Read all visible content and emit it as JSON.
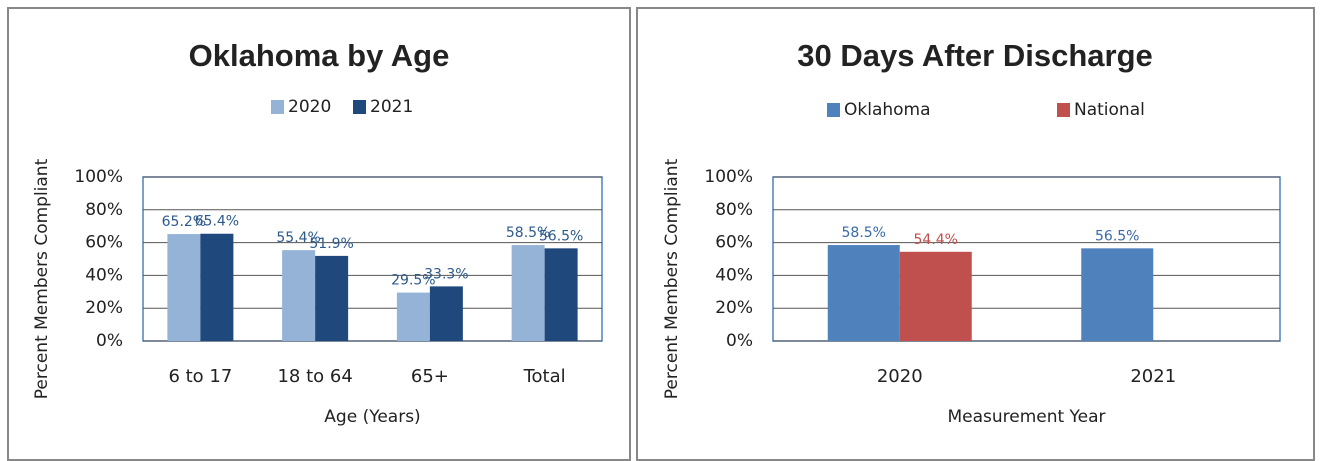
{
  "chart_data": [
    {
      "type": "bar",
      "title": "Oklahoma by Age",
      "x_label": "Age (Years)",
      "y_label": "Percent Members Compliant",
      "categories": [
        "6 to 17",
        "18 to 64",
        "65+",
        "Total"
      ],
      "series": [
        {
          "name": "2020",
          "color": "#95b3d7",
          "label_color": "#2e5a8c",
          "values": [
            65.2,
            55.4,
            29.5,
            58.5
          ],
          "value_labels": [
            "65.2%",
            "55.4%",
            "29.5%",
            "58.5%"
          ]
        },
        {
          "name": "2021",
          "color": "#1f497d",
          "label_color": "#2e5a8c",
          "values": [
            65.4,
            51.9,
            33.3,
            56.5
          ],
          "value_labels": [
            "65.4%",
            "51.9%",
            "33.3%",
            "56.5%"
          ]
        }
      ],
      "ylim": [
        0,
        100
      ],
      "yticks": [
        {
          "value": 0,
          "label": "0%"
        },
        {
          "value": 20,
          "label": "20%"
        },
        {
          "value": 40,
          "label": "40%"
        },
        {
          "value": 60,
          "label": "60%"
        },
        {
          "value": 80,
          "label": "80%"
        },
        {
          "value": 100,
          "label": "100%"
        }
      ],
      "grid": true,
      "legend": "top"
    },
    {
      "type": "bar",
      "title": "30 Days After Discharge",
      "x_label": "Measurement Year",
      "y_label": "Percent Members Compliant",
      "categories": [
        "2020",
        "2021"
      ],
      "series": [
        {
          "name": "Oklahoma",
          "color": "#4f81bd",
          "label_color": "#3a6aa8",
          "values": [
            58.5,
            56.5
          ],
          "value_labels": [
            "58.5%",
            "56.5%"
          ]
        },
        {
          "name": "National",
          "color": "#c0504d",
          "label_color": "#c0504d",
          "values": [
            54.4,
            null
          ],
          "value_labels": [
            "54.4%",
            null
          ]
        }
      ],
      "ylim": [
        0,
        100
      ],
      "yticks": [
        {
          "value": 0,
          "label": "0%"
        },
        {
          "value": 20,
          "label": "20%"
        },
        {
          "value": 40,
          "label": "40%"
        },
        {
          "value": 60,
          "label": "60%"
        },
        {
          "value": 80,
          "label": "80%"
        },
        {
          "value": 100,
          "label": "100%"
        }
      ],
      "grid": true,
      "legend": "top"
    }
  ]
}
